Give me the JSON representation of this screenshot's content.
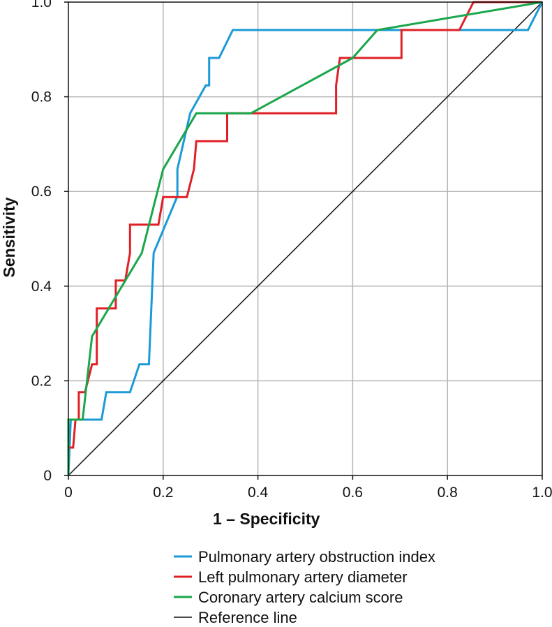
{
  "chart_data": {
    "type": "line",
    "title": "",
    "xlabel": "1 – Specificity",
    "ylabel": "Sensitivity",
    "xlim": [
      0,
      1
    ],
    "ylim": [
      0,
      1
    ],
    "grid": true,
    "legend_position": "bottom",
    "x_ticks": [
      0,
      0.2,
      0.4,
      0.6,
      0.8,
      1.0
    ],
    "x_tick_labels": [
      "0",
      "0.2",
      "0.4",
      "0.6",
      "0.8",
      "1.0"
    ],
    "y_ticks": [
      0,
      0.2,
      0.4,
      0.6,
      0.8,
      1.0
    ],
    "y_tick_labels": [
      "0",
      "0.2",
      "0.4",
      "0.6",
      "0.8",
      "1.0"
    ],
    "series": [
      {
        "name": "Pulmonary artery obstruction index",
        "color": "#1a9ad6",
        "points": [
          [
            0,
            0
          ],
          [
            0.005,
            0.118
          ],
          [
            0.07,
            0.118
          ],
          [
            0.08,
            0.176
          ],
          [
            0.13,
            0.176
          ],
          [
            0.15,
            0.235
          ],
          [
            0.17,
            0.235
          ],
          [
            0.18,
            0.47
          ],
          [
            0.23,
            0.59
          ],
          [
            0.23,
            0.647
          ],
          [
            0.257,
            0.765
          ],
          [
            0.29,
            0.824
          ],
          [
            0.297,
            0.824
          ],
          [
            0.297,
            0.882
          ],
          [
            0.318,
            0.882
          ],
          [
            0.347,
            0.941
          ],
          [
            0.97,
            0.941
          ],
          [
            1,
            1
          ]
        ]
      },
      {
        "name": "Left pulmonary artery diameter",
        "color": "#e02027",
        "points": [
          [
            0,
            0
          ],
          [
            0,
            0.059
          ],
          [
            0.01,
            0.059
          ],
          [
            0.015,
            0.118
          ],
          [
            0.022,
            0.118
          ],
          [
            0.022,
            0.176
          ],
          [
            0.035,
            0.176
          ],
          [
            0.05,
            0.235
          ],
          [
            0.06,
            0.235
          ],
          [
            0.06,
            0.353
          ],
          [
            0.1,
            0.353
          ],
          [
            0.1,
            0.412
          ],
          [
            0.12,
            0.412
          ],
          [
            0.13,
            0.47
          ],
          [
            0.13,
            0.53
          ],
          [
            0.19,
            0.53
          ],
          [
            0.2,
            0.588
          ],
          [
            0.25,
            0.588
          ],
          [
            0.265,
            0.647
          ],
          [
            0.27,
            0.706
          ],
          [
            0.335,
            0.706
          ],
          [
            0.335,
            0.765
          ],
          [
            0.565,
            0.765
          ],
          [
            0.565,
            0.824
          ],
          [
            0.573,
            0.882
          ],
          [
            0.703,
            0.882
          ],
          [
            0.703,
            0.941
          ],
          [
            0.825,
            0.941
          ],
          [
            0.855,
            1
          ],
          [
            1,
            1
          ]
        ]
      },
      {
        "name": "Coronary artery calcium score",
        "color": "#1aa64a",
        "points": [
          [
            0,
            0
          ],
          [
            0,
            0.118
          ],
          [
            0.03,
            0.118
          ],
          [
            0.05,
            0.294
          ],
          [
            0.155,
            0.47
          ],
          [
            0.2,
            0.647
          ],
          [
            0.27,
            0.765
          ],
          [
            0.385,
            0.765
          ],
          [
            0.6,
            0.882
          ],
          [
            0.652,
            0.941
          ],
          [
            1,
            1
          ]
        ]
      },
      {
        "name": "Reference line",
        "color": "#111111",
        "points": [
          [
            0,
            0
          ],
          [
            1,
            1
          ]
        ]
      }
    ]
  }
}
